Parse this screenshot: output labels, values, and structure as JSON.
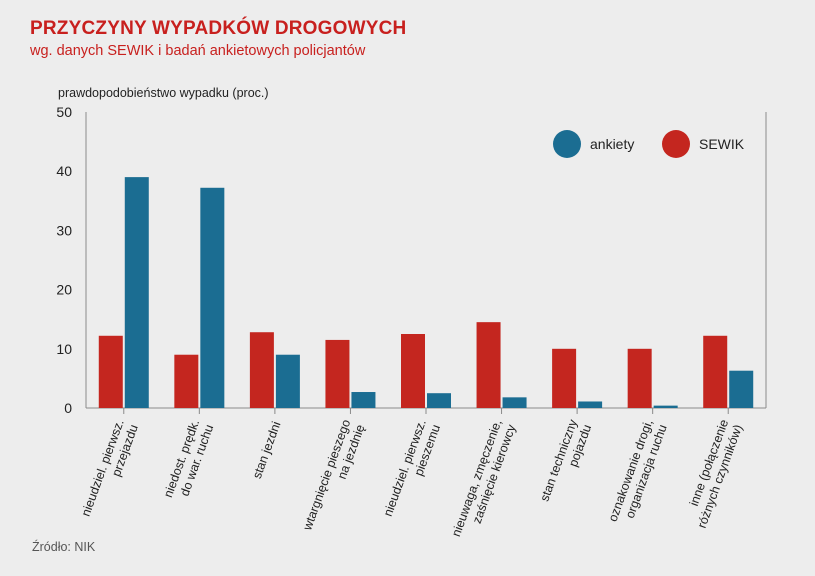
{
  "header": {
    "title": "PRZYCZYNY WYPADKÓW DROGOWYCH",
    "subtitle": "wg. danych SEWIK i badań ankietowych policjantów"
  },
  "footer": {
    "source": "Źródło: NIK"
  },
  "colors": {
    "sewik": "#c4261f",
    "ankiety": "#1b6d92",
    "title": "#c8201e"
  },
  "chart_data": {
    "type": "bar",
    "ylabel": "prawdopodobieństwo wypadku (proc.)",
    "ylim": [
      0,
      50
    ],
    "yticks": [
      0,
      10,
      20,
      30,
      40,
      50
    ],
    "grid": false,
    "legend_position": "top-right",
    "categories": [
      [
        "nieudziel. pierwsz.",
        "przejazdu"
      ],
      [
        "niedost. prędk.",
        "do war. ruchu"
      ],
      [
        "stan jezdni"
      ],
      [
        "wtargnięcie pieszego",
        "na jezdnię"
      ],
      [
        "nieudziel. pierwsz.",
        "pieszemu"
      ],
      [
        "nieuwaga, zmęczenie,",
        "zaśnięcie kierowcy"
      ],
      [
        "stan techniczny",
        "pojazdu"
      ],
      [
        "oznakowanie drogi,",
        "organizacja ruchu"
      ],
      [
        "inne (połączenie",
        "różnych czynników)"
      ]
    ],
    "series": [
      {
        "name": "SEWIK",
        "color": "#c4261f",
        "values": [
          12.2,
          9,
          12.8,
          11.5,
          12.5,
          14.5,
          10,
          10,
          12.2
        ]
      },
      {
        "name": "ankiety",
        "color": "#1b6d92",
        "values": [
          39,
          37.2,
          9,
          2.7,
          2.5,
          1.8,
          1.1,
          0.4,
          6.3
        ]
      }
    ]
  }
}
